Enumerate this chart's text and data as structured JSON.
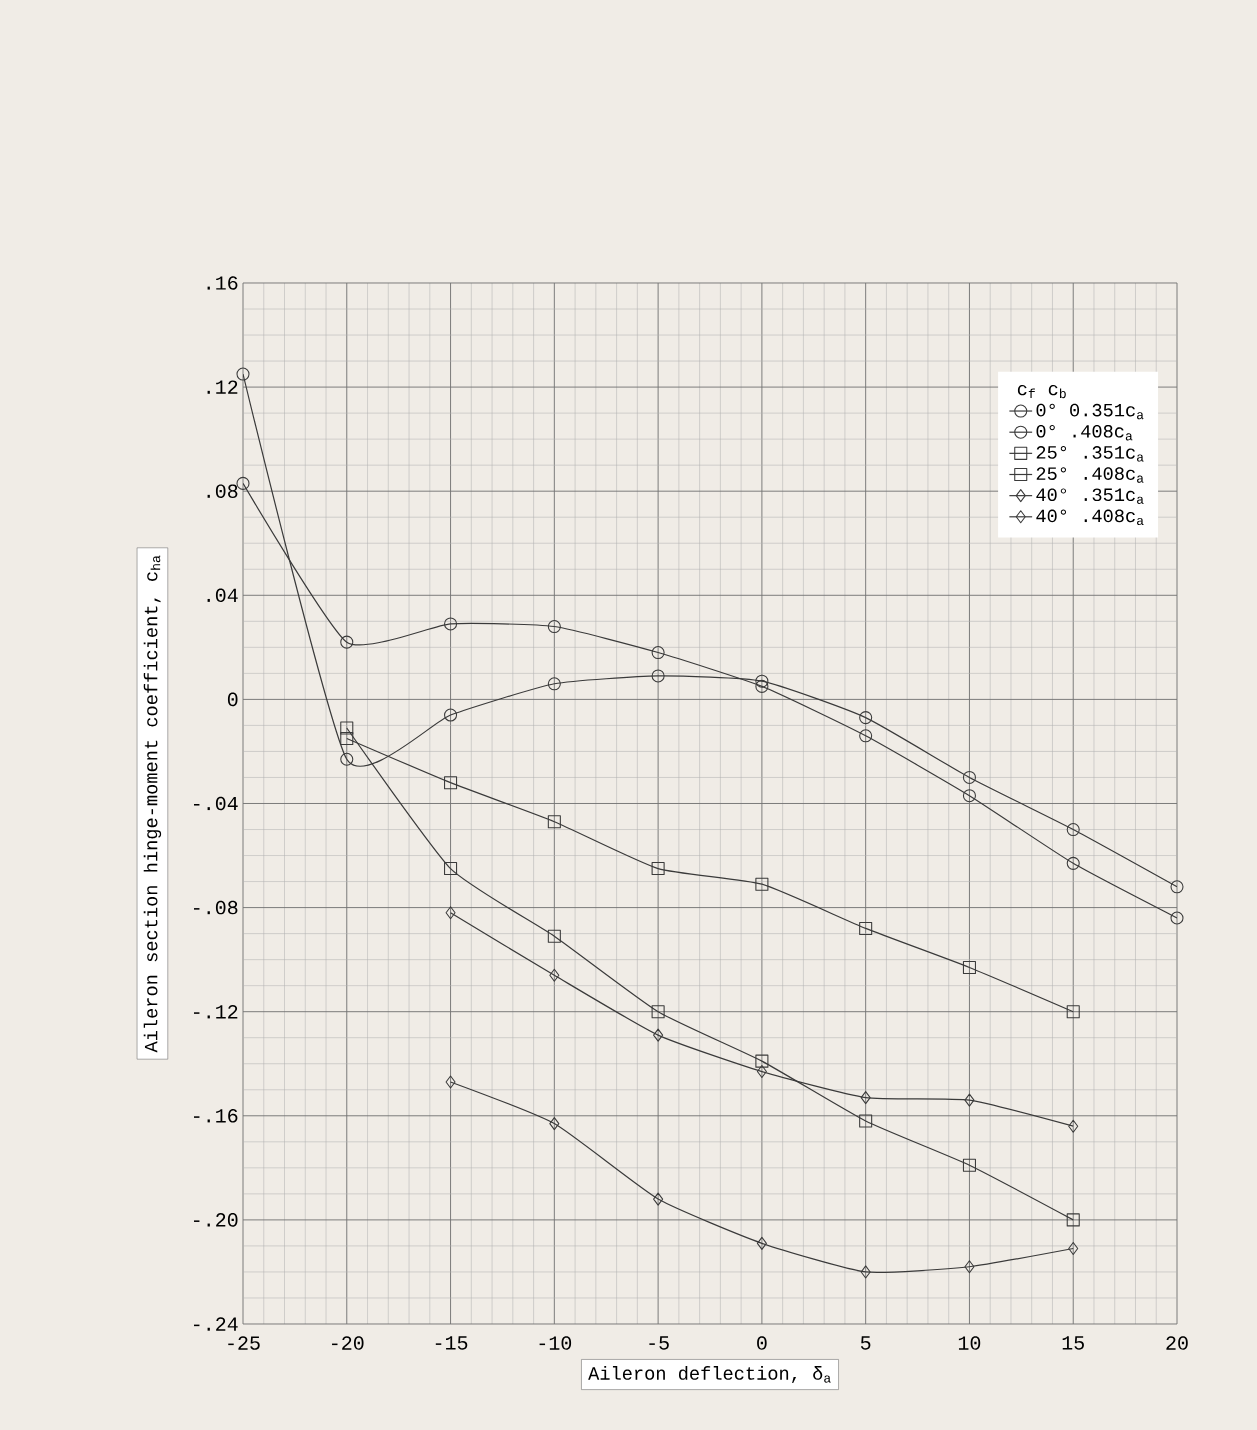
{
  "chart_data": {
    "type": "line",
    "xlabel": "Aileron deflection,  δ$_{a}$",
    "ylabel": "Aileron section hinge-moment coefficient,  c$_{ha}$",
    "legend_title": "c$_{f}$      c$_{b}$",
    "x": [
      -25,
      -20,
      -15,
      -10,
      -5,
      0,
      5,
      10,
      15,
      20
    ],
    "series": [
      {
        "name": "0°   0.351c$_{a}$",
        "color": "#3a3a3a",
        "marker": "circle",
        "values": [
          0.083,
          0.022,
          0.029,
          0.028,
          0.018,
          0.005,
          -0.014,
          -0.037,
          -0.063,
          -0.084
        ]
      },
      {
        "name": "0°    .408c$_{a}$",
        "color": "#3a3a3a",
        "marker": "circle",
        "values": [
          0.125,
          -0.023,
          -0.006,
          0.006,
          0.009,
          0.007,
          -0.007,
          -0.03,
          -0.05,
          -0.072
        ]
      },
      {
        "name": "25°   .351c$_{a}$",
        "color": "#3a3a3a",
        "marker": "square",
        "values": [
          null,
          -0.011,
          -0.065,
          -0.091,
          -0.12,
          -0.139,
          -0.162,
          -0.179,
          -0.2,
          null
        ]
      },
      {
        "name": "25°   .408c$_{a}$",
        "color": "#3a3a3a",
        "marker": "square",
        "values": [
          null,
          -0.015,
          -0.032,
          -0.047,
          -0.065,
          -0.071,
          -0.088,
          -0.103,
          -0.12,
          null
        ]
      },
      {
        "name": "40°   .351c$_{a}$",
        "color": "#3a3a3a",
        "marker": "diamond",
        "values": [
          null,
          null,
          -0.147,
          -0.163,
          -0.192,
          -0.209,
          -0.22,
          -0.218,
          -0.211,
          null
        ]
      },
      {
        "name": "40°   .408c$_{a}$",
        "color": "#3a3a3a",
        "marker": "diamond",
        "values": [
          null,
          null,
          -0.082,
          -0.106,
          -0.129,
          -0.143,
          -0.153,
          -0.154,
          -0.164,
          null
        ]
      }
    ],
    "xlim": [
      -25,
      20
    ],
    "ylim": [
      -0.24,
      0.16
    ],
    "xticks": [
      -25,
      -20,
      -15,
      -10,
      -5,
      0,
      5,
      10,
      15,
      20
    ],
    "yticks": [
      {
        "value": 0.16,
        "label": ".16"
      },
      {
        "value": 0.12,
        "label": ".12"
      },
      {
        "value": 0.08,
        "label": ".08"
      },
      {
        "value": 0.04,
        "label": ".04"
      },
      {
        "value": 0,
        "label": "0"
      },
      {
        "value": -0.04,
        "label": "-.04"
      },
      {
        "value": -0.08,
        "label": "-.08"
      },
      {
        "value": -0.12,
        "label": "-.12"
      },
      {
        "value": -0.16,
        "label": "-.16"
      },
      {
        "value": -0.2,
        "label": "-.20"
      },
      {
        "value": -0.24,
        "label": "-.24"
      }
    ],
    "grid": true,
    "legend": "top right",
    "line_style": "solid"
  }
}
